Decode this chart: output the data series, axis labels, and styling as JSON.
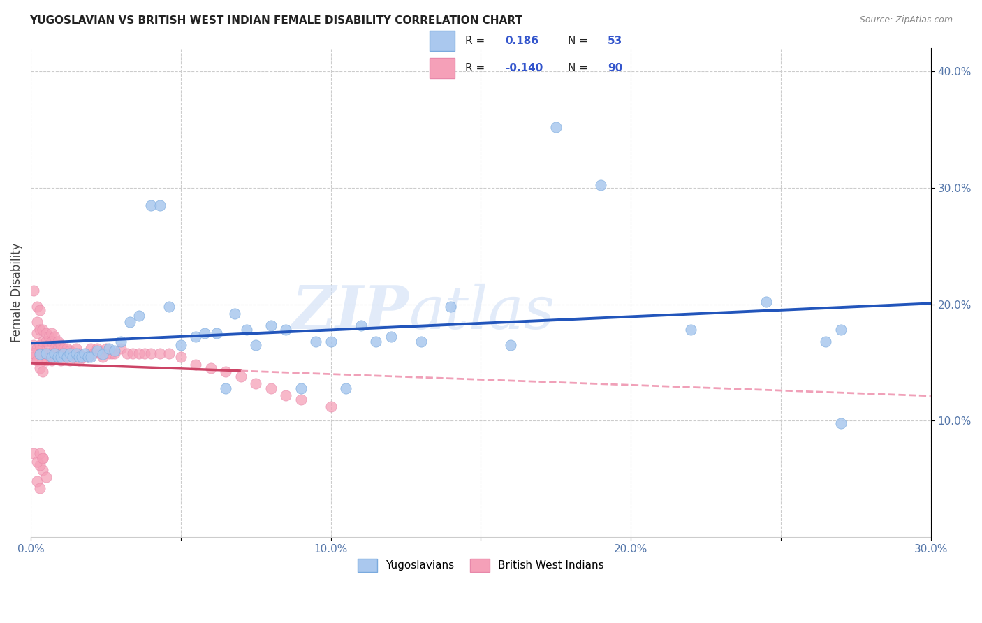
{
  "title": "YUGOSLAVIAN VS BRITISH WEST INDIAN FEMALE DISABILITY CORRELATION CHART",
  "source": "Source: ZipAtlas.com",
  "ylabel": "Female Disability",
  "xlim": [
    0.0,
    0.3
  ],
  "ylim": [
    0.0,
    0.42
  ],
  "xticks": [
    0.0,
    0.05,
    0.1,
    0.15,
    0.2,
    0.25,
    0.3
  ],
  "yticks_right": [
    0.1,
    0.2,
    0.3,
    0.4
  ],
  "ytick_labels_right": [
    "10.0%",
    "20.0%",
    "30.0%",
    "40.0%"
  ],
  "xtick_labels": [
    "0.0%",
    "",
    "10.0%",
    "",
    "20.0%",
    "",
    "30.0%"
  ],
  "background_color": "#ffffff",
  "grid_color": "#cccccc",
  "yugo_color": "#aac8ee",
  "bwi_color": "#f5a0b8",
  "yugo_line_color": "#2255bb",
  "bwi_solid_color": "#cc4466",
  "bwi_dash_color": "#f0a0b8",
  "R_yugo": 0.186,
  "N_yugo": 53,
  "R_bwi": -0.14,
  "N_bwi": 90,
  "watermark_zip": "ZIP",
  "watermark_atlas": "atlas",
  "legend_bottom": [
    "Yugoslavians",
    "British West Indians"
  ],
  "yugo_x": [
    0.003,
    0.005,
    0.007,
    0.008,
    0.009,
    0.01,
    0.011,
    0.012,
    0.013,
    0.014,
    0.015,
    0.016,
    0.017,
    0.018,
    0.019,
    0.02,
    0.022,
    0.024,
    0.026,
    0.028,
    0.03,
    0.033,
    0.036,
    0.04,
    0.043,
    0.046,
    0.05,
    0.055,
    0.058,
    0.062,
    0.065,
    0.068,
    0.072,
    0.075,
    0.08,
    0.085,
    0.09,
    0.095,
    0.1,
    0.105,
    0.11,
    0.115,
    0.12,
    0.13,
    0.14,
    0.16,
    0.175,
    0.19,
    0.22,
    0.245,
    0.265,
    0.27,
    0.27
  ],
  "yugo_y": [
    0.157,
    0.158,
    0.155,
    0.158,
    0.155,
    0.155,
    0.158,
    0.155,
    0.158,
    0.155,
    0.158,
    0.155,
    0.155,
    0.158,
    0.155,
    0.155,
    0.16,
    0.157,
    0.162,
    0.16,
    0.168,
    0.185,
    0.19,
    0.285,
    0.285,
    0.198,
    0.165,
    0.172,
    0.175,
    0.175,
    0.128,
    0.192,
    0.178,
    0.165,
    0.182,
    0.178,
    0.128,
    0.168,
    0.168,
    0.128,
    0.182,
    0.168,
    0.172,
    0.168,
    0.198,
    0.165,
    0.352,
    0.302,
    0.178,
    0.202,
    0.168,
    0.098,
    0.178
  ],
  "bwi_x": [
    0.001,
    0.001,
    0.001,
    0.002,
    0.002,
    0.002,
    0.002,
    0.003,
    0.003,
    0.003,
    0.003,
    0.004,
    0.004,
    0.004,
    0.004,
    0.005,
    0.005,
    0.005,
    0.005,
    0.006,
    0.006,
    0.006,
    0.007,
    0.007,
    0.007,
    0.007,
    0.008,
    0.008,
    0.008,
    0.009,
    0.009,
    0.009,
    0.01,
    0.01,
    0.01,
    0.011,
    0.011,
    0.012,
    0.012,
    0.013,
    0.013,
    0.014,
    0.015,
    0.015,
    0.016,
    0.016,
    0.017,
    0.018,
    0.019,
    0.02,
    0.021,
    0.022,
    0.023,
    0.024,
    0.025,
    0.026,
    0.027,
    0.028,
    0.03,
    0.032,
    0.034,
    0.036,
    0.038,
    0.04,
    0.043,
    0.046,
    0.05,
    0.055,
    0.06,
    0.065,
    0.07,
    0.075,
    0.08,
    0.085,
    0.09,
    0.1,
    0.001,
    0.002,
    0.003,
    0.004,
    0.002,
    0.003,
    0.004,
    0.005,
    0.003,
    0.004,
    0.001,
    0.002,
    0.003,
    0.004
  ],
  "bwi_y": [
    0.212,
    0.165,
    0.155,
    0.198,
    0.185,
    0.175,
    0.162,
    0.195,
    0.178,
    0.165,
    0.158,
    0.178,
    0.168,
    0.158,
    0.152,
    0.175,
    0.168,
    0.158,
    0.152,
    0.172,
    0.165,
    0.158,
    0.175,
    0.168,
    0.158,
    0.152,
    0.172,
    0.162,
    0.155,
    0.168,
    0.162,
    0.155,
    0.165,
    0.158,
    0.152,
    0.162,
    0.155,
    0.162,
    0.155,
    0.16,
    0.152,
    0.158,
    0.162,
    0.155,
    0.158,
    0.152,
    0.155,
    0.155,
    0.155,
    0.162,
    0.158,
    0.162,
    0.158,
    0.155,
    0.162,
    0.158,
    0.158,
    0.158,
    0.162,
    0.158,
    0.158,
    0.158,
    0.158,
    0.158,
    0.158,
    0.158,
    0.155,
    0.148,
    0.145,
    0.142,
    0.138,
    0.132,
    0.128,
    0.122,
    0.118,
    0.112,
    0.158,
    0.152,
    0.145,
    0.142,
    0.048,
    0.042,
    0.058,
    0.052,
    0.062,
    0.068,
    0.072,
    0.065,
    0.072,
    0.068
  ]
}
